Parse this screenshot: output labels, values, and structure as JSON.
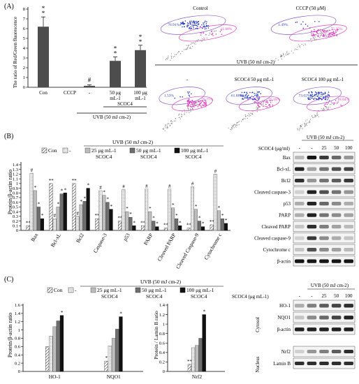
{
  "panel_labels": {
    "a": "(A)",
    "b": "(B)",
    "c": "(C)"
  },
  "colors": {
    "bar_dark": "#4d4d4d",
    "bar_black": "#111111",
    "flow_purple": "#8a5cc8",
    "flow_blue": "#2a3ec8",
    "flow_pink": "#e040c0",
    "flow_gray": "#888888"
  },
  "panelA": {
    "ylabel": "The ratio of Red/Green fluorescence",
    "categories": [
      "Con",
      "CCCP",
      "-",
      "50 μg mL-1",
      "100 μg mL-1"
    ],
    "bracket_scoc4": "SCOC4",
    "bracket_uvb": "UVB (50 mJ cm-2)",
    "yticks": [
      "0",
      "1",
      "2",
      "3",
      "4",
      "5",
      "6",
      "7",
      "8"
    ],
    "sig": [
      "**",
      "",
      "#",
      "**",
      "**"
    ],
    "flow": {
      "top_titles": [
        "Control",
        "CCCP (50 μM)"
      ],
      "top_values": [
        [
          "76.91%",
          "11.80%"
        ],
        [
          "1.49%",
          "75.35%"
        ]
      ],
      "uvb_header": "UVB (50 mJ cm-2)",
      "bottom_titles": [
        "-",
        "SCOC4 50 μg mL-1",
        "SCOC4 100 μg mL-1"
      ],
      "bottom_values": [
        [
          "1.53%",
          "76.77%"
        ],
        [
          "61.88%",
          "25.18%"
        ],
        [
          "73.02%",
          "18.04%"
        ]
      ]
    }
  },
  "panelB": {
    "legend_title": "UVB (50 mJ cm-2)",
    "legend": [
      "Con",
      "-",
      "25 μg mL-1 SCOC4",
      "50 μg mL-1 SCOC4",
      "100 μg mL-1 SCOC4"
    ],
    "ylabel": "Protein/β-actin ratio",
    "yticks": [
      "0",
      "0.1",
      "0.2",
      "0.3",
      "0.4",
      "0.5",
      "0.6",
      "0.7",
      "0.8",
      "0.9",
      "1",
      "1.1",
      "1.2",
      "1.3",
      "1.4"
    ],
    "categories": [
      "Bax",
      "Bcl-xL",
      "Bcl2",
      "Caspase-3",
      "p53",
      "PARP",
      "Cleaved PARP",
      "Cleaved Caspase-9",
      "Cytochrome c"
    ],
    "blot": {
      "header": "UVB (50 mJ cm-2)",
      "lane_label": "SCOC4 (μg/ml)",
      "lanes": [
        "-",
        "-",
        "25",
        "50",
        "100"
      ],
      "rows": [
        "Bax",
        "Bcl-xL",
        "Bcl2",
        "Cleaved caspase-3",
        "p53",
        "PARP",
        "Cleaved PARP",
        "Cleaved caspase-9",
        "Cytochrome c",
        "β-actin"
      ]
    }
  },
  "panelC": {
    "legend_title": "UVB (50 mJ cm-2)",
    "legend": [
      "Con",
      "-",
      "25 μg mL-1 SCOC4",
      "50 μg mL-1 SCOC4",
      "100 μg mL-1 SCOC4"
    ],
    "ylabel_left": "Protein/β-actin ratio",
    "ylabel_right": "Protein / Lamin B ratio",
    "yticks_left": [
      "0",
      "0.2",
      "0.4",
      "0.6",
      "0.8",
      "1",
      "1.2",
      "1.4",
      "1.6"
    ],
    "yticks_right": [
      "0",
      "0.2",
      "0.4",
      "0.6",
      "0.8",
      "1",
      "1.2",
      "1.4"
    ],
    "categories_left": [
      "HO-1",
      "NQO1"
    ],
    "categories_right": [
      "Nrf2"
    ],
    "blot": {
      "header": "UVB (50 mJ cm-2)",
      "lane_label": "SCOC4 (μg mL-1)",
      "lanes": [
        "-",
        "-",
        "25",
        "50",
        "100"
      ],
      "cytosol_label": "Cytosol",
      "nucleus_label": "Nucleus",
      "cytosol_rows": [
        "HO-1",
        "NQO1",
        "β-actin"
      ],
      "nucleus_rows": [
        "Nrf2",
        "Lamin B"
      ]
    }
  },
  "chart_data": [
    {
      "type": "bar",
      "ylabel": "The ratio of Red/Green fluorescence",
      "categories": [
        "Con",
        "CCCP",
        "-",
        "50 μg mL-1",
        "100 μg mL-1"
      ],
      "values": [
        6.2,
        0,
        0.15,
        2.7,
        3.8
      ],
      "errors": [
        1.0,
        0,
        0.1,
        0.4,
        0.5
      ],
      "ylim": [
        0,
        8
      ]
    },
    {
      "type": "bar",
      "ylabel": "Protein/β-actin ratio",
      "categories": [
        "Bax",
        "Bcl-xL",
        "Bcl2",
        "Caspase-3",
        "p53",
        "PARP",
        "Cleaved PARP",
        "Cleaved Caspase-9",
        "Cytochrome c"
      ],
      "ylim": [
        0,
        1.4
      ],
      "series": [
        {
          "name": "Con",
          "values": [
            0.1,
            1.0,
            1.0,
            0.25,
            0.2,
            0.1,
            0.05,
            0.05,
            0.12
          ]
        },
        {
          "name": "-",
          "values": [
            1.22,
            0.25,
            0.3,
            0.85,
            0.87,
            0.88,
            0.88,
            0.93,
            1.2
          ]
        },
        {
          "name": "25 μg mL-1 SCOC4",
          "values": [
            0.85,
            0.5,
            0.55,
            0.75,
            0.4,
            0.4,
            0.48,
            0.45,
            0.42
          ]
        },
        {
          "name": "50 μg mL-1 SCOC4",
          "values": [
            0.5,
            0.78,
            0.62,
            0.6,
            0.28,
            0.2,
            0.25,
            0.2,
            0.25
          ]
        },
        {
          "name": "100 μg mL-1 SCOC4",
          "values": [
            0.25,
            0.8,
            0.9,
            0.45,
            0.1,
            0.08,
            0.1,
            0.08,
            0.15
          ]
        }
      ]
    },
    {
      "type": "bar",
      "ylabel": "Protein/β-actin ratio",
      "categories": [
        "HO-1",
        "NQO1"
      ],
      "ylim": [
        0,
        1.6
      ],
      "series": [
        {
          "name": "Con",
          "values": [
            0.6,
            0.25
          ]
        },
        {
          "name": "-",
          "values": [
            0.85,
            0.62
          ]
        },
        {
          "name": "25 μg mL-1 SCOC4",
          "values": [
            1.08,
            0.8
          ]
        },
        {
          "name": "50 μg mL-1 SCOC4",
          "values": [
            1.22,
            1.02
          ]
        },
        {
          "name": "100 μg mL-1 SCOC4",
          "values": [
            1.35,
            1.32
          ]
        }
      ]
    },
    {
      "type": "bar",
      "ylabel": "Protein / Lamin B ratio",
      "categories": [
        "Nrf2"
      ],
      "ylim": [
        0,
        1.4
      ],
      "series": [
        {
          "name": "Con",
          "values": [
            0.15
          ]
        },
        {
          "name": "-",
          "values": [
            0.5
          ]
        },
        {
          "name": "25 μg mL-1 SCOC4",
          "values": [
            0.55
          ]
        },
        {
          "name": "50 μg mL-1 SCOC4",
          "values": [
            0.7
          ]
        },
        {
          "name": "100 μg mL-1 SCOC4",
          "values": [
            1.2
          ]
        }
      ]
    }
  ]
}
